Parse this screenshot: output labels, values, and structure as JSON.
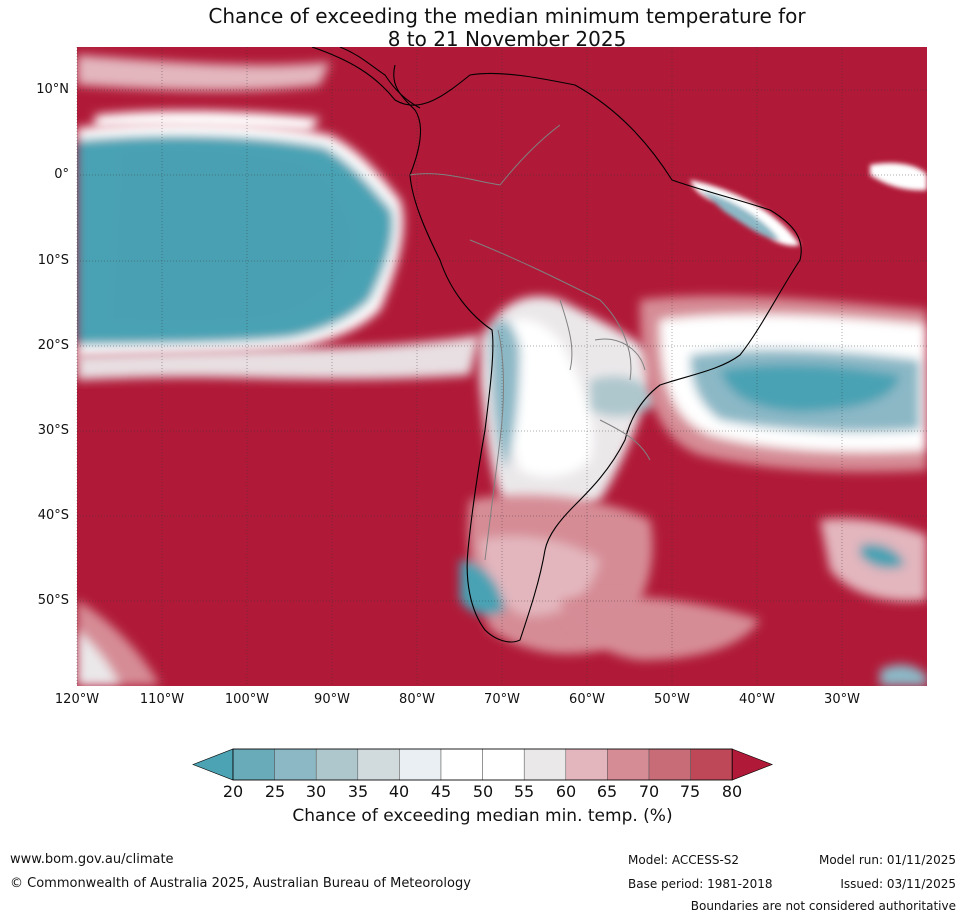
{
  "title": {
    "line1": "Chance of exceeding the median minimum temperature for",
    "line2": "8 to 21 November 2025"
  },
  "map": {
    "lat_labels": [
      "10°N",
      "0°",
      "10°S",
      "20°S",
      "30°S",
      "40°S",
      "50°S"
    ],
    "lon_labels": [
      "120°W",
      "110°W",
      "100°W",
      "90°W",
      "80°W",
      "70°W",
      "60°W",
      "50°W",
      "40°W",
      "30°W"
    ],
    "colors": {
      "high": "#b01a38",
      "low": "#4aa2b4",
      "neutral": "#f4f4f4"
    }
  },
  "colorbar": {
    "labels": [
      "20",
      "25",
      "30",
      "35",
      "40",
      "45",
      "50",
      "55",
      "60",
      "65",
      "70",
      "75",
      "80"
    ],
    "colors": [
      "#4ba3b3",
      "#6aabb9",
      "#8cb8c6",
      "#adc7cd",
      "#d1dadd",
      "#e9eff2",
      "#ffffff",
      "#ffffff",
      "#ebe8ea",
      "#e3b6bd",
      "#d68c95",
      "#c86d78",
      "#bf4858",
      "#b01a38"
    ],
    "title": "Chance of exceeding median min. temp. (%)"
  },
  "footer": {
    "website": "www.bom.gov.au/climate",
    "copyright": "© Commonwealth of Australia 2025, Australian Bureau of Meteorology",
    "model": "Model: ACCESS-S2",
    "base_period": "Base period: 1981-2018",
    "model_run": "Model run: 01/11/2025",
    "issued": "Issued: 03/11/2025",
    "disclaimer": "Boundaries are not considered authoritative"
  }
}
